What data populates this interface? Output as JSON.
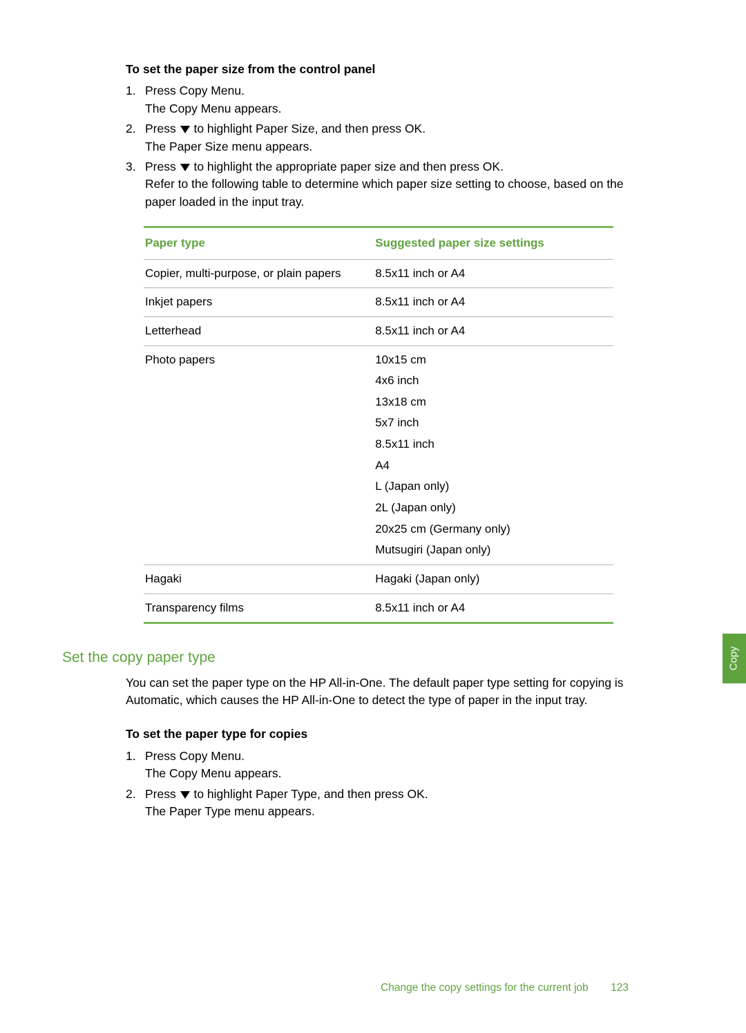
{
  "sections": {
    "set_paper_size": {
      "title": "To set the paper size from the control panel",
      "steps": [
        {
          "num": "1.",
          "lines": [
            "Press Copy Menu.",
            "The Copy Menu appears."
          ],
          "icon_after_press": false
        },
        {
          "num": "2.",
          "lines_pre": "Press ",
          "lines_post": " to highlight Paper Size, and then press OK.",
          "lines2": "The Paper Size menu appears.",
          "icon_after_press": true
        },
        {
          "num": "3.",
          "lines_pre": "Press ",
          "lines_post": " to highlight the appropriate paper size and then press OK.",
          "lines2": "Refer to the following table to determine which paper size setting to choose, based on the paper loaded in the input tray.",
          "icon_after_press": true
        }
      ]
    },
    "table": {
      "headers": [
        "Paper type",
        "Suggested paper size settings"
      ],
      "rows": [
        {
          "type": "Copier, multi-purpose, or plain papers",
          "setting": [
            "8.5x11 inch or A4"
          ]
        },
        {
          "type": "Inkjet papers",
          "setting": [
            "8.5x11 inch or A4"
          ]
        },
        {
          "type": "Letterhead",
          "setting": [
            "8.5x11 inch or A4"
          ]
        },
        {
          "type": "Photo papers",
          "setting": [
            "10x15 cm",
            "4x6 inch",
            "13x18 cm",
            "5x7 inch",
            "8.5x11 inch",
            "A4",
            "L (Japan only)",
            "2L (Japan only)",
            "20x25 cm (Germany only)",
            "Mutsugiri (Japan only)"
          ]
        },
        {
          "type": "Hagaki",
          "setting": [
            "Hagaki (Japan only)"
          ]
        },
        {
          "type": "Transparency films",
          "setting": [
            "8.5x11 inch or A4"
          ]
        }
      ]
    },
    "set_paper_type": {
      "heading": "Set the copy paper type",
      "intro": "You can set the paper type on the HP All-in-One. The default paper type setting for copying is Automatic, which causes the HP All-in-One to detect the type of paper in the input tray.",
      "subtitle": "To set the paper type for copies",
      "steps": [
        {
          "num": "1.",
          "lines": [
            "Press Copy Menu.",
            "The Copy Menu appears."
          ],
          "icon_after_press": false
        },
        {
          "num": "2.",
          "lines_pre": "Press ",
          "lines_post": " to highlight Paper Type, and then press OK.",
          "lines2": "The Paper Type menu appears.",
          "icon_after_press": true
        }
      ]
    }
  },
  "side_tab": "Copy",
  "footer": {
    "text": "Change the copy settings for the current job",
    "page": "123"
  },
  "colors": {
    "accent": "#5fa33f",
    "border_accent": "#7db85c",
    "row_border": "#b6b6b6"
  }
}
